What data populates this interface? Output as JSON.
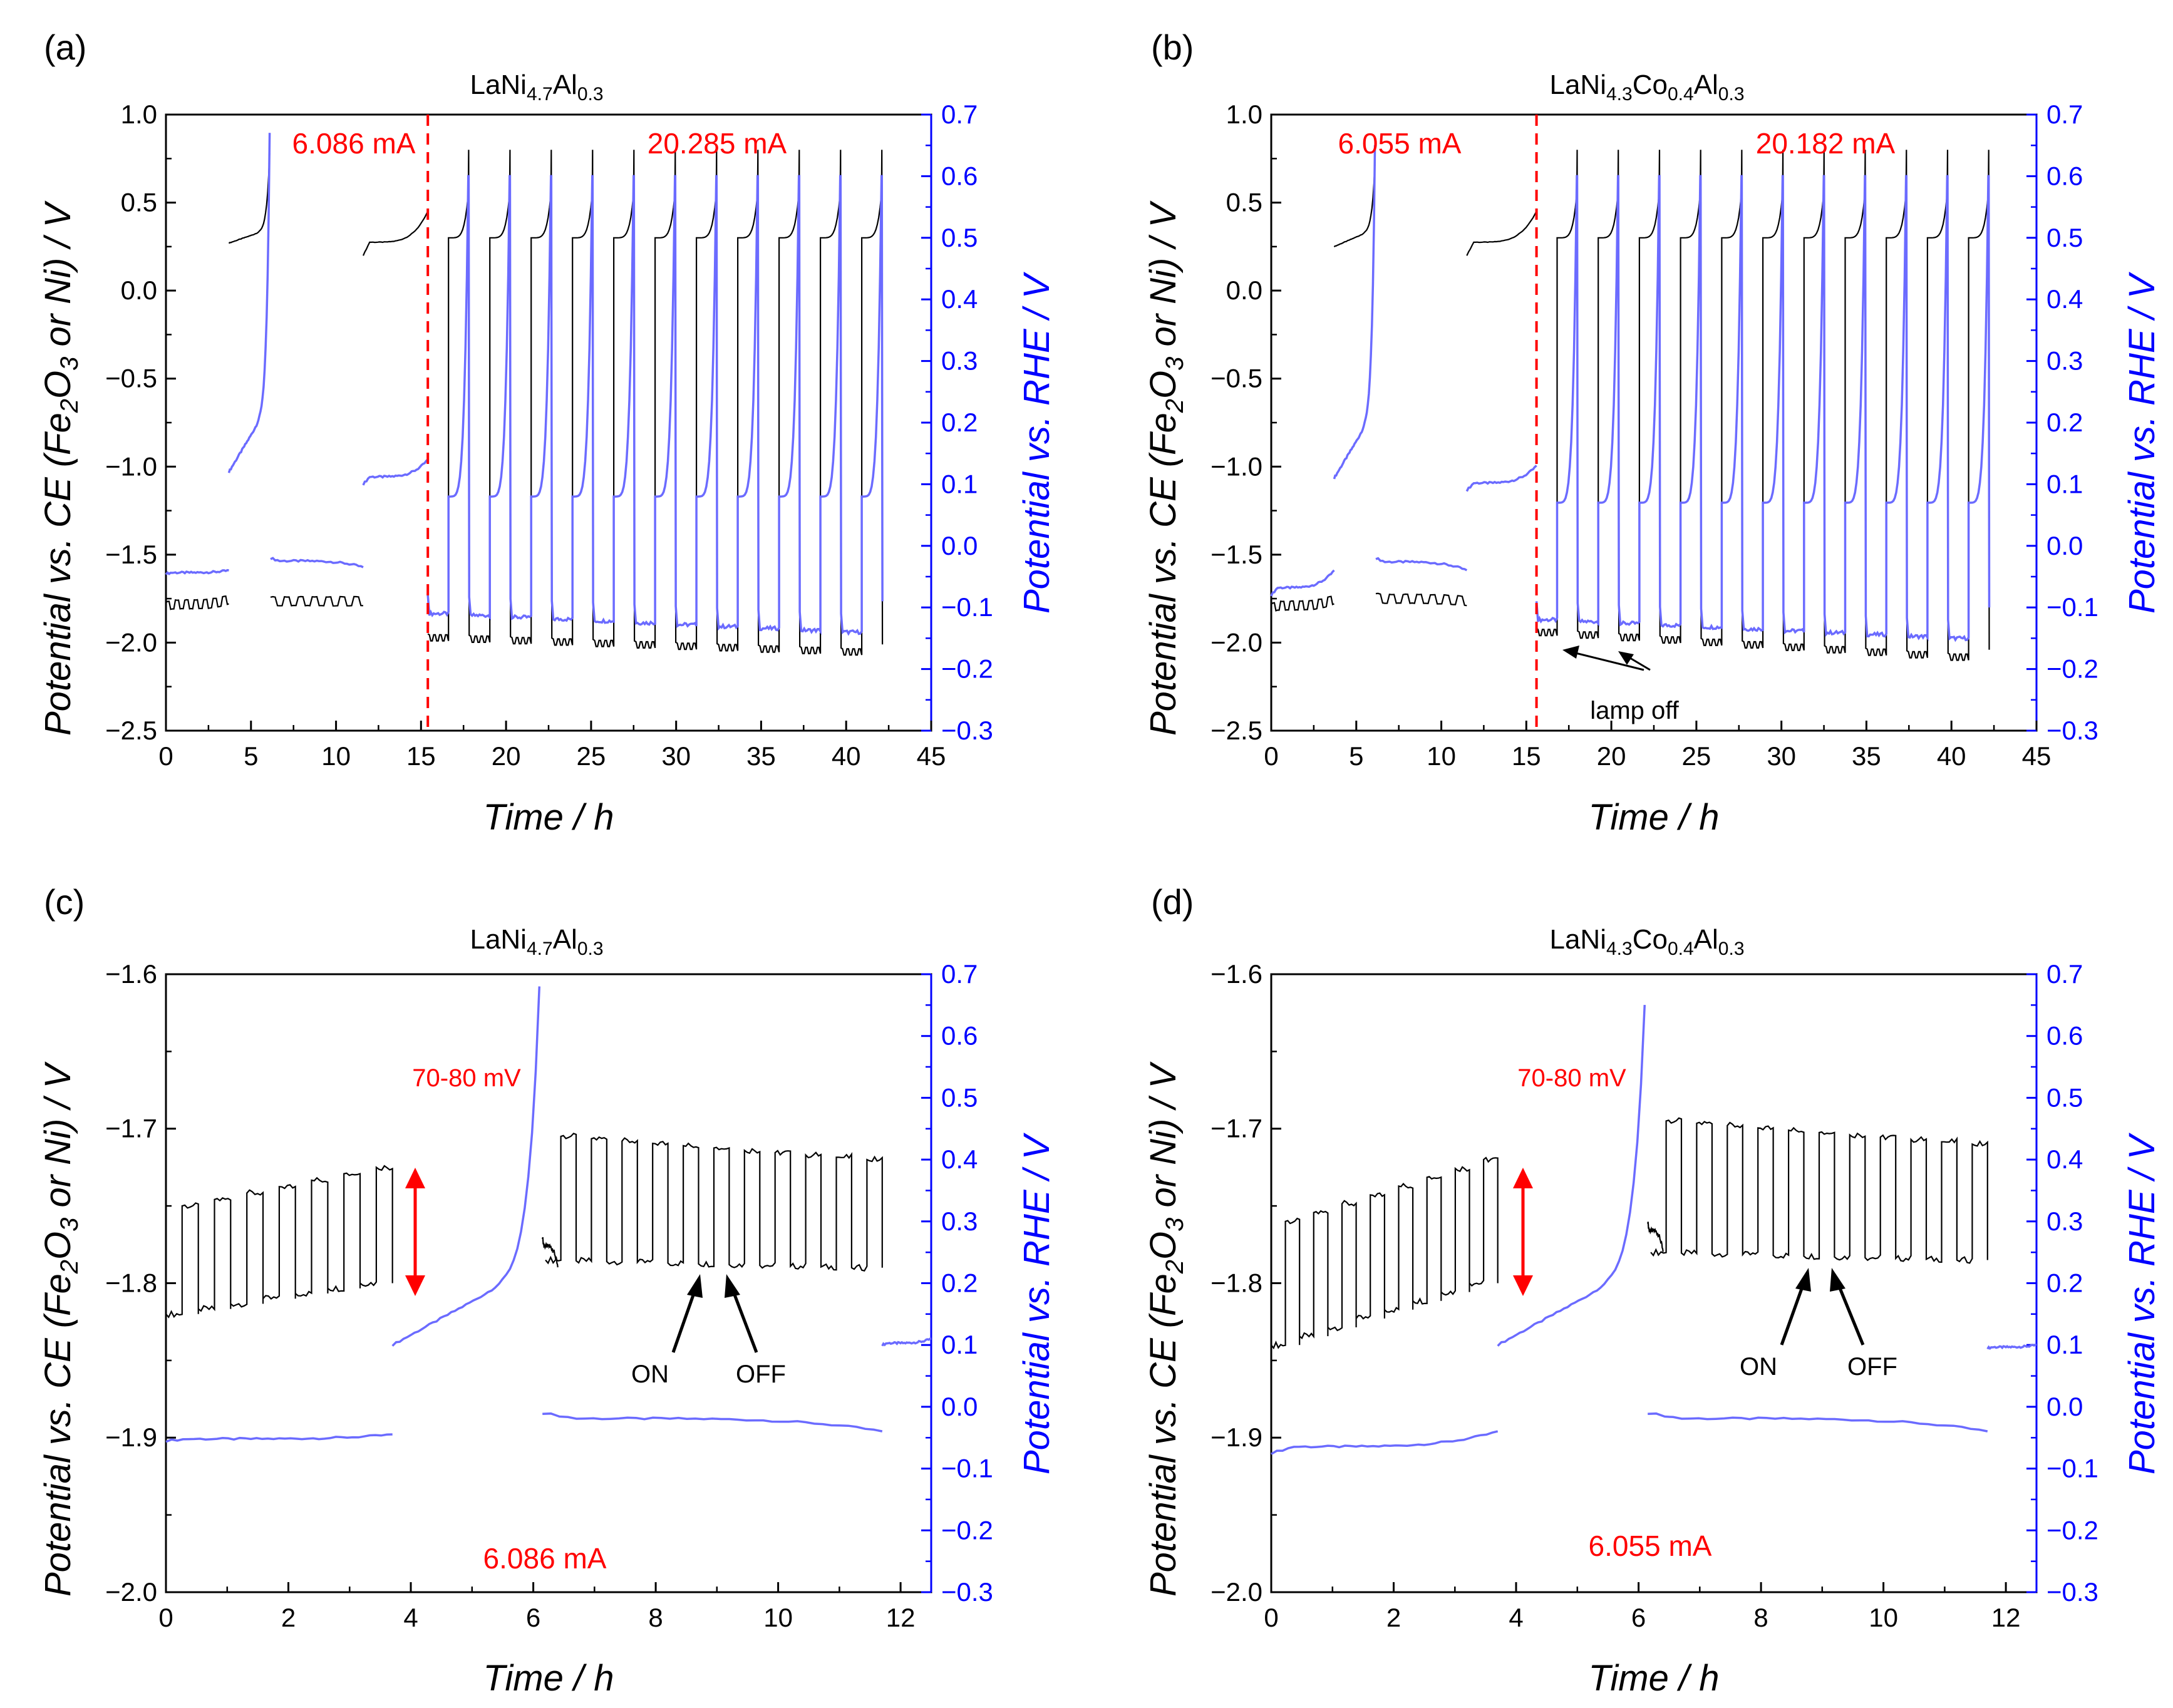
{
  "chart_data": [
    {
      "panel": "(a)",
      "type": "line",
      "title": {
        "pre": "LaNi",
        "s1": "4.7",
        "mid1": "Al",
        "s2": "0.3"
      },
      "xlabel": "Time / h",
      "ylabel": {
        "pre": "Potential vs. CE (Fe",
        "s1": "2",
        "mid": "O",
        "s2": "3",
        "post": " or Ni) / V"
      },
      "ylabel_right": "Potential vs. RHE / V",
      "xlim": [
        0,
        45
      ],
      "ylim": [
        -2.5,
        1.0
      ],
      "ylim_right": [
        -0.3,
        0.7
      ],
      "x_ticks": [
        "0",
        "5",
        "10",
        "15",
        "20",
        "25",
        "30",
        "35",
        "40",
        "45"
      ],
      "y_ticks": [
        "−2.5",
        "−2.0",
        "−1.5",
        "−1.0",
        "−0.5",
        "0.0",
        "0.5",
        "1.0"
      ],
      "y_ticks_right": [
        "−0.3",
        "−0.2",
        "−0.1",
        "0.0",
        "0.1",
        "0.2",
        "0.3",
        "0.4",
        "0.5",
        "0.6",
        "0.7"
      ],
      "divider_x": 15.4,
      "annotations": {
        "current_low": "6.086 mA",
        "current_high": "20.285 mA"
      },
      "colors": {
        "ce": "#000000",
        "rhe": "#6b6bff",
        "axis_right": "#0000ff",
        "divider": "#ff0000"
      },
      "series": [
        {
          "name": "vs CE",
          "segments": [
            {
              "x0": 0,
              "x1": 3.7,
              "y0": -1.82,
              "y1": -1.78,
              "osc": 0.05,
              "n": 7
            },
            {
              "x0": 3.7,
              "x1": 6.1,
              "y0": 0.27,
              "y1": 0.35,
              "spike": 0.78
            },
            {
              "x0": 6.15,
              "x1": 11.6,
              "y0": -1.79,
              "y1": -1.79,
              "osc": 0.05,
              "n": 11
            },
            {
              "x0": 11.6,
              "x1": 15.4,
              "y0": 0.2,
              "y1": 0.45
            },
            {
              "cycle_start": 15.4,
              "cycle_period": 2.43,
              "cycles": 11,
              "low": [
                -1.98,
                -2.06
              ],
              "high": [
                0.3,
                0.55
              ],
              "spike": 0.8
            }
          ]
        },
        {
          "name": "vs RHE",
          "segments": [
            {
              "x0": 0,
              "x1": 3.7,
              "y0": -0.045,
              "y1": -0.04
            },
            {
              "x0": 3.7,
              "x1": 6.1,
              "y0": 0.12,
              "y1": 0.23,
              "spike": 0.67
            },
            {
              "x0": 6.15,
              "x1": 11.6,
              "y0": -0.02,
              "y1": -0.035
            },
            {
              "x0": 11.6,
              "x1": 15.4,
              "y0": 0.1,
              "y1": 0.14
            },
            {
              "cycle_start": 15.4,
              "cycle_period": 2.43,
              "cycles": 11,
              "low": [
                -0.11,
                -0.14
              ],
              "high": [
                0.08,
                0.6
              ],
              "spike": 0.6
            }
          ]
        }
      ]
    },
    {
      "panel": "(b)",
      "type": "line",
      "title": {
        "pre": "LaNi",
        "s1": "4.3",
        "mid1": "Co",
        "s2": "0.4",
        "mid2": "Al",
        "s3": "0.3"
      },
      "xlabel": "Time / h",
      "ylabel": {
        "pre": "Potential vs. CE (Fe",
        "s1": "2",
        "mid": "O",
        "s2": "3",
        "post": " or Ni) / V"
      },
      "ylabel_right": "Potential vs. RHE / V",
      "xlim": [
        0,
        45
      ],
      "ylim": [
        -2.5,
        1.0
      ],
      "ylim_right": [
        -0.3,
        0.7
      ],
      "x_ticks": [
        "0",
        "5",
        "10",
        "15",
        "20",
        "25",
        "30",
        "35",
        "40",
        "45"
      ],
      "y_ticks": [
        "−2.5",
        "−2.0",
        "−1.5",
        "−1.0",
        "−0.5",
        "0.0",
        "0.5",
        "1.0"
      ],
      "y_ticks_right": [
        "−0.3",
        "−0.2",
        "−0.1",
        "0.0",
        "0.1",
        "0.2",
        "0.3",
        "0.4",
        "0.5",
        "0.6",
        "0.7"
      ],
      "divider_x": 15.6,
      "annotations": {
        "current_low": "6.055 mA",
        "current_high": "20.182 mA",
        "lamp": "lamp off"
      },
      "colors": {
        "ce": "#000000",
        "rhe": "#6b6bff",
        "axis_right": "#0000ff",
        "divider": "#ff0000"
      },
      "series": [
        {
          "name": "vs CE",
          "segments": [
            {
              "x0": 0,
              "x1": 3.7,
              "y0": -1.83,
              "y1": -1.78,
              "osc": 0.05,
              "n": 7
            },
            {
              "x0": 3.7,
              "x1": 6.1,
              "y0": 0.25,
              "y1": 0.35,
              "spike": 0.72
            },
            {
              "x0": 6.15,
              "x1": 11.5,
              "y0": -1.77,
              "y1": -1.79,
              "osc": 0.05,
              "n": 11
            },
            {
              "x0": 11.5,
              "x1": 15.6,
              "y0": 0.2,
              "y1": 0.45
            },
            {
              "cycle_start": 15.6,
              "cycle_period": 2.42,
              "cycles": 11,
              "low": [
                -1.95,
                -2.09
              ],
              "high": [
                0.3,
                0.55
              ],
              "spike": 0.8
            }
          ]
        },
        {
          "name": "vs RHE",
          "segments": [
            {
              "x0": 0,
              "x1": 3.7,
              "y0": -0.08,
              "y1": -0.04
            },
            {
              "x0": 3.7,
              "x1": 6.1,
              "y0": 0.11,
              "y1": 0.22,
              "spike": 0.65
            },
            {
              "x0": 6.15,
              "x1": 11.5,
              "y0": -0.02,
              "y1": -0.04
            },
            {
              "x0": 11.5,
              "x1": 15.6,
              "y0": 0.09,
              "y1": 0.13
            },
            {
              "cycle_start": 15.6,
              "cycle_period": 2.42,
              "cycles": 11,
              "low": [
                -0.12,
                -0.15
              ],
              "high": [
                0.07,
                0.6
              ],
              "spike": 0.6
            }
          ]
        }
      ]
    },
    {
      "panel": "(c)",
      "type": "line",
      "title": {
        "pre": "LaNi",
        "s1": "4.7",
        "mid1": "Al",
        "s2": "0.3"
      },
      "xlabel": "Time / h",
      "ylabel": {
        "pre": "Potential vs. CE (Fe",
        "s1": "2",
        "mid": "O",
        "s2": "3",
        "post": " or Ni) / V"
      },
      "ylabel_right": "Potential vs. RHE / V",
      "xlim": [
        0,
        12.5
      ],
      "ylim": [
        -2.0,
        -1.6
      ],
      "ylim_right": [
        -0.3,
        0.7
      ],
      "x_ticks": [
        "0",
        "2",
        "4",
        "6",
        "8",
        "10",
        "12"
      ],
      "y_ticks": [
        "−2.0",
        "−1.9",
        "−1.8",
        "−1.7",
        "−1.6"
      ],
      "y_ticks_right": [
        "−0.3",
        "−0.2",
        "−0.1",
        "0.0",
        "0.1",
        "0.2",
        "0.3",
        "0.4",
        "0.5",
        "0.6",
        "0.7"
      ],
      "annotations": {
        "delta": "70-80 mV",
        "on": "ON",
        "off": "OFF",
        "current": "6.086 mA"
      },
      "colors": {
        "ce": "#000000",
        "rhe": "#6b6bff",
        "axis_right": "#0000ff",
        "arrow": "#ff0000"
      },
      "series": [
        {
          "name": "vs CE",
          "segments": [
            {
              "x0": 0,
              "x1": 3.7,
              "square": true,
              "low": [
                -1.82,
                -1.8
              ],
              "high": [
                -1.75,
                -1.725
              ],
              "n": 7
            },
            {
              "x0": 6.2,
              "x1": 11.7,
              "square": true,
              "low": [
                -1.785,
                -1.79
              ],
              "high": [
                -1.705,
                -1.72
              ],
              "n": 11
            },
            {
              "x0": 6.15,
              "x1": 6.4,
              "y0": -1.77,
              "y1": -1.79
            }
          ]
        },
        {
          "name": "vs RHE",
          "segments": [
            {
              "x0": 0,
              "x1": 3.7,
              "y0": -0.055,
              "y1": -0.045
            },
            {
              "x0": 3.7,
              "x1": 6.1,
              "y0": 0.1,
              "y1": 0.23,
              "spike": 0.68
            },
            {
              "x0": 6.15,
              "x1": 11.7,
              "y0": -0.01,
              "y1": -0.04
            },
            {
              "x0": 11.7,
              "x1": 12.5,
              "y0": 0.1,
              "y1": 0.11
            }
          ]
        }
      ]
    },
    {
      "panel": "(d)",
      "type": "line",
      "title": {
        "pre": "LaNi",
        "s1": "4.3",
        "mid1": "Co",
        "s2": "0.4",
        "mid2": "Al",
        "s3": "0.3"
      },
      "xlabel": "Time / h",
      "ylabel": {
        "pre": "Potential vs. CE (Fe",
        "s1": "2",
        "mid": "O",
        "s2": "3",
        "post": " or Ni) / V"
      },
      "ylabel_right": "Potential vs. RHE / V",
      "xlim": [
        0,
        12.5
      ],
      "ylim": [
        -2.0,
        -1.6
      ],
      "ylim_right": [
        -0.3,
        0.7
      ],
      "x_ticks": [
        "0",
        "2",
        "4",
        "6",
        "8",
        "10",
        "12"
      ],
      "y_ticks": [
        "−2.0",
        "−1.9",
        "−1.8",
        "−1.7",
        "−1.6"
      ],
      "y_ticks_right": [
        "−0.3",
        "−0.2",
        "−0.1",
        "0.0",
        "0.1",
        "0.2",
        "0.3",
        "0.4",
        "0.5",
        "0.6",
        "0.7"
      ],
      "annotations": {
        "delta": "70-80 mV",
        "on": "ON",
        "off": "OFF",
        "current": "6.055 mA"
      },
      "colors": {
        "ce": "#000000",
        "rhe": "#6b6bff",
        "axis_right": "#0000ff",
        "arrow": "#ff0000"
      },
      "series": [
        {
          "name": "vs CE",
          "segments": [
            {
              "x0": 0,
              "x1": 3.7,
              "square": true,
              "low": [
                -1.84,
                -1.8
              ],
              "high": [
                -1.76,
                -1.72
              ],
              "n": 8
            },
            {
              "x0": 6.2,
              "x1": 11.7,
              "square": true,
              "low": [
                -1.78,
                -1.785
              ],
              "high": [
                -1.695,
                -1.71
              ],
              "n": 11
            },
            {
              "x0": 6.15,
              "x1": 6.4,
              "y0": -1.76,
              "y1": -1.78
            }
          ]
        },
        {
          "name": "vs RHE",
          "segments": [
            {
              "x0": 0,
              "x1": 3.7,
              "y0": -0.075,
              "y1": -0.04
            },
            {
              "x0": 3.7,
              "x1": 6.1,
              "y0": 0.1,
              "y1": 0.23,
              "spike": 0.65
            },
            {
              "x0": 6.15,
              "x1": 11.7,
              "y0": -0.01,
              "y1": -0.04
            },
            {
              "x0": 11.7,
              "x1": 12.5,
              "y0": 0.095,
              "y1": 0.1
            }
          ]
        }
      ]
    }
  ]
}
